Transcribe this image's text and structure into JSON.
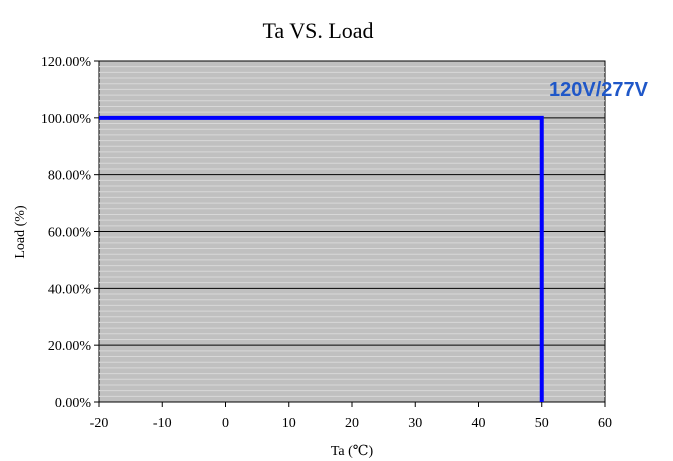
{
  "chart_data": {
    "type": "line",
    "title": "Ta VS. Load",
    "xlabel": "Ta (℃)",
    "ylabel": "Load (%)",
    "xlim": [
      -20,
      60
    ],
    "ylim": [
      0,
      120
    ],
    "x_ticks": [
      -20,
      -10,
      0,
      10,
      20,
      30,
      40,
      50,
      60
    ],
    "x_tick_labels": [
      "-20",
      "-10",
      "0",
      "10",
      "20",
      "30",
      "40",
      "50",
      "60"
    ],
    "y_ticks": [
      0,
      20,
      40,
      60,
      80,
      100,
      120
    ],
    "y_tick_labels": [
      "0.00%",
      "20.00%",
      "40.00%",
      "60.00%",
      "80.00%",
      "100.00%",
      "120.00%"
    ],
    "grid": true,
    "minor_grid": true,
    "series": [
      {
        "name": "120V/277V",
        "color": "#0000ff",
        "points": [
          {
            "x": -20,
            "y": 100
          },
          {
            "x": 50,
            "y": 100
          },
          {
            "x": 50,
            "y": 0
          }
        ]
      }
    ]
  },
  "colors": {
    "plot_background": "#c0c0c0",
    "major_grid": "#000000",
    "minor_grid": "#d8d8d8",
    "series_label": "#1f57c8"
  }
}
